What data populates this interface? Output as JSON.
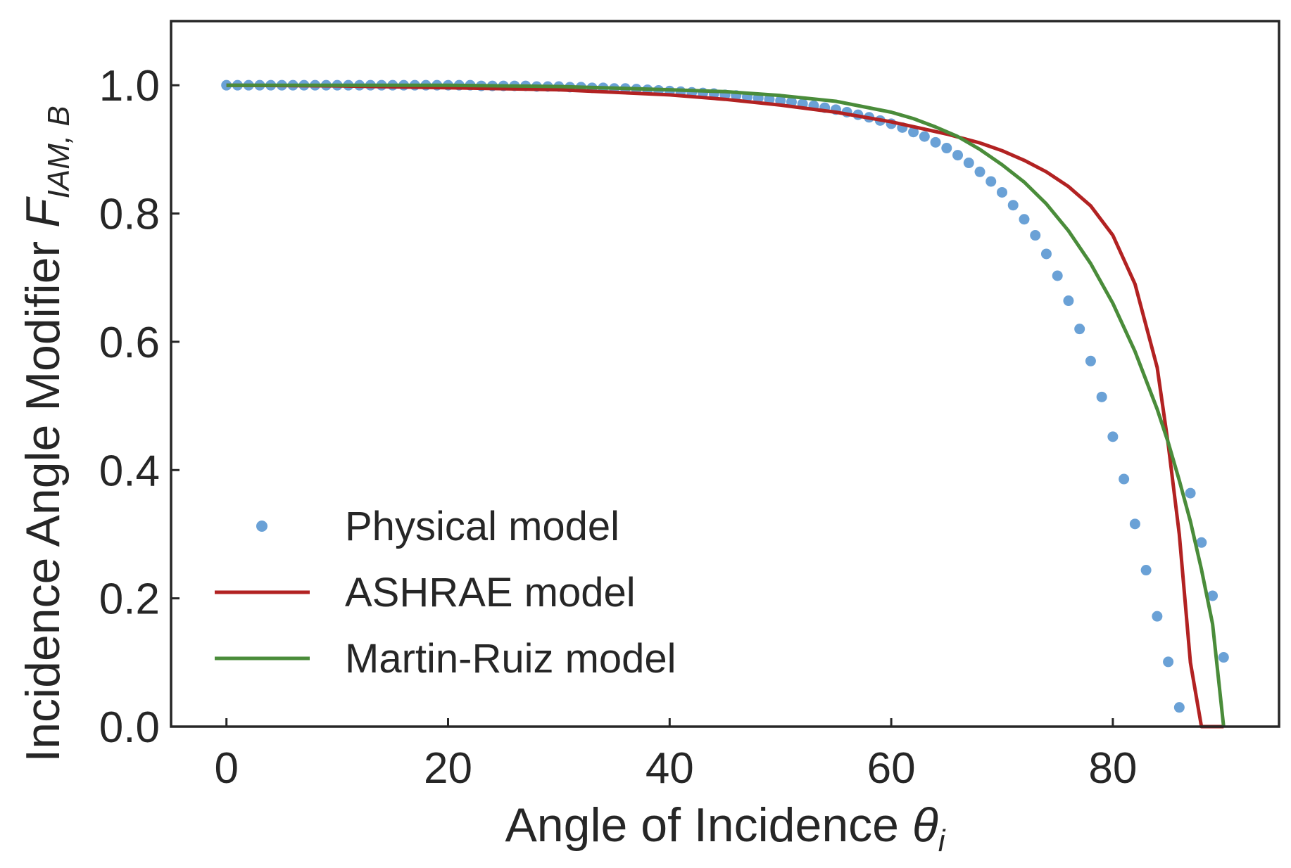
{
  "chart_data": {
    "type": "line",
    "xlabel": "Angle of Incidence θ_i",
    "ylabel": "Incidence Angle Modifier F_IAM,B",
    "xlim": [
      -5,
      95
    ],
    "ylim": [
      0,
      1.1
    ],
    "xticks": [
      "0",
      "20",
      "40",
      "60",
      "80"
    ],
    "xtick_values": [
      0,
      20,
      40,
      60,
      80
    ],
    "yticks": [
      "0.0",
      "0.2",
      "0.4",
      "0.6",
      "0.8",
      "1.0"
    ],
    "ytick_values": [
      0,
      0.2,
      0.4,
      0.6,
      0.8,
      1.0
    ],
    "grid": false,
    "legend_position": "lower-left",
    "series": [
      {
        "name": "Physical model",
        "style": "markers",
        "color": "#6aa1d6",
        "x": [
          0,
          1,
          2,
          3,
          4,
          5,
          6,
          7,
          8,
          9,
          10,
          11,
          12,
          13,
          14,
          15,
          16,
          17,
          18,
          19,
          20,
          21,
          22,
          23,
          24,
          25,
          26,
          27,
          28,
          29,
          30,
          31,
          32,
          33,
          34,
          35,
          36,
          37,
          38,
          39,
          40,
          41,
          42,
          43,
          44,
          45,
          46,
          47,
          48,
          49,
          50,
          51,
          52,
          53,
          54,
          55,
          56,
          57,
          58,
          59,
          60,
          61,
          62,
          63,
          64,
          65,
          66,
          67,
          68,
          69,
          70,
          71,
          72,
          73,
          74,
          75,
          76,
          77,
          78,
          79,
          80,
          81,
          82,
          83,
          84,
          85,
          86,
          87,
          88,
          89,
          90
        ],
        "y": [
          1.0,
          1.0,
          1.0,
          1.0,
          1.0,
          1.0,
          1.0,
          1.0,
          1.0,
          1.0,
          1.0,
          1.0,
          1.0,
          1.0,
          1.0,
          1.0,
          1.0,
          1.0,
          1.0,
          1.0,
          1.0,
          1.0,
          1.0,
          0.999,
          0.999,
          0.999,
          0.999,
          0.999,
          0.998,
          0.998,
          0.998,
          0.997,
          0.997,
          0.996,
          0.996,
          0.995,
          0.995,
          0.994,
          0.993,
          0.992,
          0.991,
          0.99,
          0.989,
          0.988,
          0.987,
          0.985,
          0.984,
          0.982,
          0.98,
          0.978,
          0.976,
          0.974,
          0.971,
          0.968,
          0.965,
          0.962,
          0.958,
          0.954,
          0.95,
          0.945,
          0.94,
          0.934,
          0.927,
          0.92,
          0.911,
          0.902,
          0.891,
          0.879,
          0.865,
          0.85,
          0.833,
          0.813,
          0.791,
          0.766,
          0.737,
          0.703,
          0.664,
          0.62,
          0.57,
          0.514,
          0.452,
          0.386,
          0.316,
          0.244,
          0.172,
          0.101,
          0.03,
          0.364,
          0.287,
          0.204,
          0.108
        ],
        "y_note": ""
      },
      {
        "name": "ASHRAE model",
        "style": "line",
        "color": "#b22222",
        "x": [
          0,
          10,
          20,
          30,
          40,
          45,
          50,
          55,
          60,
          65,
          68,
          70,
          72,
          74,
          76,
          78,
          80,
          82,
          84,
          85,
          86,
          87,
          88,
          90
        ],
        "y": [
          1.0,
          0.999,
          0.996,
          0.993,
          0.985,
          0.978,
          0.969,
          0.958,
          0.943,
          0.924,
          0.91,
          0.898,
          0.883,
          0.865,
          0.842,
          0.812,
          0.766,
          0.69,
          0.56,
          0.44,
          0.3,
          0.1,
          0.0,
          0.0
        ]
      },
      {
        "name": "Martin-Ruiz model",
        "style": "line",
        "color": "#4a8c3a",
        "x": [
          0,
          10,
          20,
          30,
          40,
          45,
          50,
          55,
          60,
          62,
          64,
          66,
          68,
          70,
          72,
          74,
          76,
          78,
          80,
          82,
          84,
          85,
          86,
          87,
          88,
          89,
          90
        ],
        "y": [
          1.0,
          1.0,
          1.0,
          0.998,
          0.993,
          0.99,
          0.984,
          0.975,
          0.958,
          0.948,
          0.935,
          0.92,
          0.9,
          0.876,
          0.849,
          0.815,
          0.773,
          0.722,
          0.66,
          0.585,
          0.495,
          0.443,
          0.384,
          0.32,
          0.245,
          0.16,
          0.0
        ]
      }
    ]
  }
}
